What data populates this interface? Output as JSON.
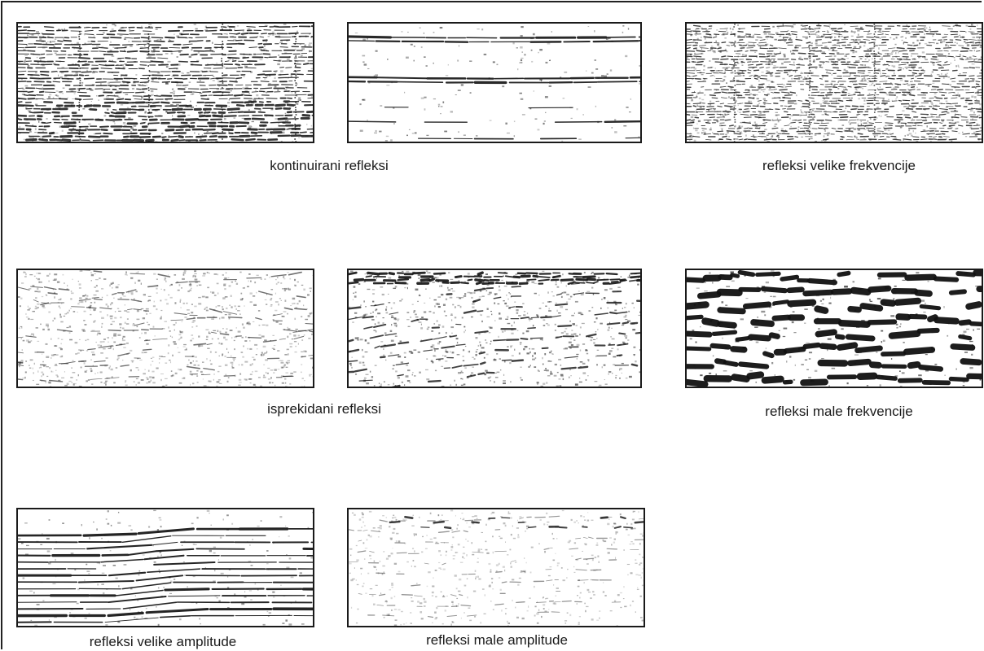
{
  "captions": {
    "continuous": "kontinuirani refleksi",
    "high_frequency": "refleksi velike frekvencije",
    "discontinuous": "isprekidani refleksi",
    "low_frequency": "refleksi male frekvencije",
    "high_amplitude": "refleksi velike amplitude",
    "low_amplitude": "refleksi male amplitude"
  },
  "colors": {
    "ink": "#111111",
    "frame": "#222222",
    "background": "#ffffff"
  }
}
